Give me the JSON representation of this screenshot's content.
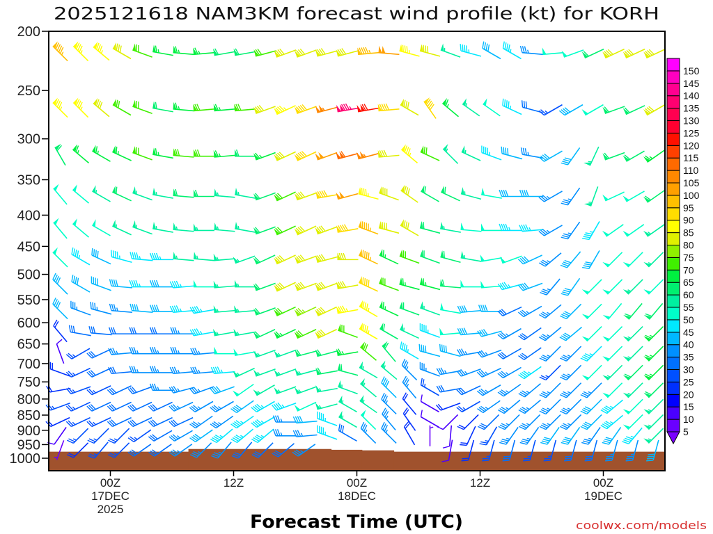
{
  "chart_data": {
    "type": "wind-barb-time-height",
    "title": "2025121618 NAM3KM forecast wind profile (kt) for KORH",
    "xlabel": "Forecast Time (UTC)",
    "ylabel": "",
    "credit": "coolwx.com/models",
    "x_range_hours": [
      0,
      60
    ],
    "y_range_mb": [
      200,
      1000
    ],
    "y_scale": "log",
    "y_ticks": [
      "200",
      "250",
      "300",
      "350",
      "400",
      "450",
      "500",
      "550",
      "600",
      "650",
      "700",
      "750",
      "800",
      "850",
      "900",
      "950",
      "1000"
    ],
    "x_ticks": [
      {
        "hour": 6,
        "label": "00Z",
        "date": "17DEC",
        "year": "2025"
      },
      {
        "hour": 18,
        "label": "12Z",
        "date": "",
        "year": ""
      },
      {
        "hour": 30,
        "label": "00Z",
        "date": "18DEC",
        "year": ""
      },
      {
        "hour": 42,
        "label": "12Z",
        "date": "",
        "year": ""
      },
      {
        "hour": 54,
        "label": "00Z",
        "date": "19DEC",
        "year": ""
      }
    ],
    "units": "kt",
    "hours": [
      2,
      4,
      6,
      8,
      10,
      12,
      14,
      16,
      18,
      20,
      22,
      24,
      26,
      28,
      30,
      32,
      34,
      36,
      38,
      40,
      42,
      44,
      46,
      48,
      50,
      52,
      54,
      56,
      58,
      60
    ],
    "levels": [
      {
        "p": 200,
        "spd": [
          95,
          85,
          85,
          80,
          70,
          65,
          65,
          65,
          60,
          60,
          70,
          80,
          80,
          80,
          80,
          95,
          100,
          85,
          80,
          55,
          45,
          40,
          45,
          35,
          50,
          50,
          60,
          80,
          80,
          80
        ],
        "dir": [
          315,
          315,
          310,
          300,
          290,
          280,
          275,
          265,
          260,
          260,
          255,
          250,
          250,
          255,
          255,
          265,
          275,
          285,
          285,
          290,
          285,
          300,
          300,
          275,
          265,
          250,
          245,
          245,
          245,
          245
        ]
      },
      {
        "p": 250,
        "spd": [
          85,
          85,
          80,
          70,
          70,
          60,
          65,
          70,
          65,
          70,
          80,
          85,
          90,
          105,
          135,
          120,
          90,
          80,
          90,
          65,
          55,
          50,
          45,
          30,
          25,
          40,
          50,
          60,
          60,
          80
        ],
        "dir": [
          315,
          315,
          310,
          300,
          290,
          280,
          275,
          265,
          265,
          265,
          250,
          245,
          250,
          255,
          260,
          260,
          265,
          300,
          325,
          310,
          305,
          305,
          295,
          285,
          240,
          240,
          240,
          250,
          245,
          240
        ]
      },
      {
        "p": 300,
        "spd": [
          60,
          65,
          65,
          65,
          70,
          65,
          70,
          70,
          65,
          60,
          65,
          80,
          90,
          100,
          110,
          105,
          80,
          85,
          70,
          55,
          55,
          45,
          40,
          35,
          40,
          40,
          55,
          60,
          60,
          65
        ],
        "dir": [
          330,
          310,
          300,
          295,
          290,
          280,
          275,
          270,
          265,
          270,
          250,
          245,
          245,
          250,
          255,
          255,
          265,
          310,
          295,
          315,
          295,
          290,
          285,
          280,
          240,
          215,
          205,
          250,
          240,
          235
        ]
      },
      {
        "p": 350,
        "spd": [
          50,
          50,
          55,
          60,
          55,
          55,
          60,
          60,
          55,
          55,
          60,
          70,
          80,
          90,
          100,
          85,
          80,
          80,
          60,
          60,
          55,
          50,
          40,
          40,
          35,
          35,
          55,
          50,
          50,
          60
        ],
        "dir": [
          320,
          310,
          300,
          295,
          290,
          280,
          275,
          270,
          275,
          280,
          250,
          245,
          250,
          260,
          255,
          285,
          290,
          305,
          300,
          295,
          285,
          280,
          270,
          270,
          240,
          215,
          200,
          245,
          240,
          235
        ]
      },
      {
        "p": 400,
        "spd": [
          50,
          50,
          50,
          55,
          55,
          55,
          55,
          55,
          55,
          55,
          60,
          70,
          80,
          80,
          90,
          95,
          80,
          80,
          60,
          55,
          50,
          50,
          45,
          45,
          35,
          35,
          45,
          50,
          50,
          55
        ],
        "dir": [
          320,
          310,
          300,
          295,
          290,
          280,
          275,
          270,
          275,
          280,
          250,
          245,
          245,
          250,
          260,
          290,
          285,
          300,
          285,
          280,
          275,
          270,
          270,
          265,
          240,
          215,
          210,
          235,
          235,
          235
        ]
      },
      {
        "p": 450,
        "spd": [
          50,
          45,
          40,
          45,
          45,
          45,
          55,
          55,
          55,
          55,
          60,
          80,
          80,
          80,
          80,
          95,
          65,
          70,
          60,
          60,
          55,
          50,
          50,
          40,
          35,
          40,
          40,
          50,
          50,
          55
        ],
        "dir": [
          315,
          300,
          295,
          285,
          275,
          270,
          275,
          275,
          265,
          250,
          245,
          245,
          250,
          255,
          270,
          295,
          295,
          290,
          290,
          285,
          280,
          260,
          250,
          245,
          230,
          220,
          210,
          225,
          225,
          225
        ]
      },
      {
        "p": 500,
        "spd": [
          40,
          40,
          40,
          40,
          45,
          40,
          45,
          50,
          55,
          55,
          60,
          80,
          80,
          80,
          80,
          90,
          70,
          65,
          65,
          60,
          50,
          50,
          45,
          40,
          35,
          40,
          50,
          50,
          55,
          50
        ],
        "dir": [
          315,
          300,
          290,
          275,
          270,
          270,
          265,
          270,
          265,
          270,
          250,
          245,
          250,
          250,
          260,
          295,
          290,
          285,
          285,
          275,
          270,
          265,
          255,
          250,
          220,
          215,
          225,
          225,
          225,
          225
        ]
      },
      {
        "p": 550,
        "spd": [
          40,
          35,
          35,
          35,
          40,
          40,
          45,
          45,
          55,
          55,
          60,
          70,
          75,
          80,
          85,
          85,
          65,
          60,
          55,
          50,
          40,
          40,
          30,
          35,
          35,
          40,
          50,
          50,
          60,
          60
        ],
        "dir": [
          315,
          290,
          285,
          275,
          275,
          270,
          265,
          260,
          265,
          265,
          250,
          245,
          245,
          245,
          260,
          300,
          295,
          290,
          290,
          280,
          265,
          270,
          245,
          240,
          230,
          225,
          225,
          220,
          220,
          220
        ]
      },
      {
        "p": 600,
        "spd": [
          20,
          30,
          30,
          30,
          30,
          30,
          35,
          45,
          55,
          55,
          60,
          65,
          70,
          80,
          70,
          85,
          60,
          55,
          45,
          50,
          40,
          40,
          35,
          30,
          35,
          40,
          50,
          50,
          55,
          65
        ],
        "dir": [
          320,
          280,
          275,
          270,
          270,
          270,
          270,
          260,
          260,
          260,
          245,
          245,
          245,
          245,
          290,
          300,
          300,
          295,
          290,
          265,
          265,
          255,
          240,
          235,
          230,
          230,
          225,
          225,
          225,
          225
        ]
      },
      {
        "p": 650,
        "spd": [
          10,
          25,
          30,
          35,
          35,
          35,
          35,
          35,
          50,
          50,
          55,
          55,
          60,
          60,
          65,
          70,
          60,
          45,
          40,
          40,
          35,
          35,
          30,
          30,
          35,
          35,
          45,
          50,
          55,
          65
        ],
        "dir": [
          340,
          240,
          245,
          265,
          270,
          270,
          270,
          265,
          270,
          260,
          250,
          250,
          255,
          255,
          260,
          310,
          320,
          300,
          285,
          285,
          260,
          250,
          240,
          235,
          225,
          225,
          225,
          225,
          225,
          225
        ]
      },
      {
        "p": 700,
        "spd": [
          20,
          25,
          30,
          30,
          35,
          35,
          35,
          35,
          45,
          55,
          55,
          55,
          55,
          60,
          60,
          55,
          55,
          35,
          35,
          35,
          35,
          35,
          35,
          45,
          25,
          35,
          50,
          55,
          60,
          65
        ],
        "dir": [
          290,
          245,
          245,
          265,
          270,
          270,
          265,
          265,
          265,
          245,
          250,
          250,
          255,
          260,
          285,
          300,
          310,
          315,
          290,
          260,
          250,
          245,
          240,
          235,
          225,
          225,
          225,
          225,
          225,
          225
        ]
      },
      {
        "p": 750,
        "spd": [
          20,
          25,
          25,
          30,
          30,
          35,
          35,
          35,
          40,
          50,
          55,
          55,
          55,
          55,
          55,
          55,
          40,
          35,
          25,
          30,
          30,
          35,
          35,
          35,
          35,
          35,
          35,
          50,
          55,
          60
        ],
        "dir": [
          260,
          250,
          245,
          245,
          250,
          270,
          255,
          250,
          250,
          235,
          240,
          250,
          250,
          260,
          290,
          310,
          315,
          320,
          300,
          260,
          245,
          240,
          235,
          230,
          225,
          225,
          225,
          225,
          225,
          225
        ]
      },
      {
        "p": 800,
        "spd": [
          25,
          25,
          30,
          30,
          30,
          30,
          35,
          35,
          35,
          40,
          45,
          45,
          50,
          55,
          55,
          55,
          35,
          20,
          10,
          20,
          25,
          35,
          35,
          35,
          35,
          35,
          40,
          45,
          50,
          55
        ],
        "dir": [
          250,
          245,
          245,
          245,
          245,
          245,
          245,
          240,
          240,
          235,
          240,
          250,
          245,
          255,
          300,
          305,
          315,
          320,
          300,
          250,
          240,
          235,
          230,
          230,
          225,
          225,
          225,
          230,
          225,
          225
        ]
      },
      {
        "p": 850,
        "spd": [
          20,
          25,
          25,
          30,
          30,
          30,
          30,
          35,
          35,
          45,
          45,
          35,
          40,
          45,
          55,
          50,
          35,
          20,
          10,
          10,
          20,
          30,
          35,
          35,
          35,
          35,
          40,
          45,
          50,
          55
        ],
        "dir": [
          245,
          245,
          245,
          245,
          245,
          245,
          245,
          235,
          235,
          235,
          240,
          270,
          265,
          290,
          300,
          315,
          320,
          325,
          300,
          225,
          225,
          225,
          225,
          225,
          225,
          225,
          225,
          230,
          225,
          225
        ]
      },
      {
        "p": 900,
        "spd": [
          10,
          25,
          25,
          25,
          25,
          30,
          35,
          40,
          45,
          45,
          45,
          35,
          35,
          45,
          30,
          35,
          35,
          20,
          5,
          10,
          20,
          25,
          35,
          35,
          40,
          40,
          35,
          40,
          45,
          55
        ],
        "dir": [
          215,
          225,
          225,
          225,
          235,
          240,
          240,
          235,
          230,
          230,
          230,
          270,
          265,
          290,
          300,
          315,
          315,
          330,
          360,
          185,
          205,
          210,
          215,
          215,
          215,
          215,
          215,
          215,
          220,
          225
        ]
      },
      {
        "p": 950,
        "spd": [
          5,
          20,
          25,
          25,
          30,
          30,
          35,
          35,
          35,
          30,
          30,
          30,
          35,
          null,
          null,
          null,
          null,
          null,
          null,
          10,
          20,
          25,
          30,
          25,
          25,
          30,
          30,
          35,
          35,
          40
        ],
        "dir": [
          200,
          225,
          220,
          225,
          235,
          235,
          235,
          225,
          220,
          220,
          225,
          230,
          235,
          null,
          null,
          null,
          null,
          null,
          null,
          190,
          195,
          195,
          195,
          195,
          195,
          195,
          195,
          195,
          195,
          195
        ]
      }
    ],
    "surface_pressure_mb": [
      {
        "from_hour": 0,
        "to_hour": 13.6,
        "p": 986
      },
      {
        "from_hour": 13.6,
        "to_hour": 27.5,
        "p": 976
      },
      {
        "from_hour": 27.5,
        "to_hour": 30.5,
        "p": 979
      },
      {
        "from_hour": 30.5,
        "to_hour": 33.6,
        "p": 981
      },
      {
        "from_hour": 33.6,
        "to_hour": 60,
        "p": 986
      }
    ],
    "colorbar": {
      "labels": [
        "5",
        "10",
        "15",
        "20",
        "25",
        "30",
        "35",
        "40",
        "45",
        "50",
        "55",
        "60",
        "65",
        "70",
        "75",
        "80",
        "85",
        "90",
        "95",
        "100",
        "105",
        "110",
        "115",
        "120",
        "125",
        "130",
        "135",
        "140",
        "145",
        "150"
      ],
      "below_color": "#7a00ff",
      "above_color": "#000000",
      "bin_colors": [
        "#6a00ff",
        "#4a00ff",
        "#0000ff",
        "#0030ff",
        "#0050ff",
        "#0070ff",
        "#0090ff",
        "#00b8ff",
        "#00e8ff",
        "#00ffc8",
        "#00f0a0",
        "#00f070",
        "#00f040",
        "#40f000",
        "#90f000",
        "#e0f000",
        "#ffff00",
        "#ffdd00",
        "#ffc000",
        "#ffa000",
        "#ff8800",
        "#ff6a00",
        "#ff4000",
        "#ff1000",
        "#ff0030",
        "#ff0050",
        "#ff0070",
        "#ff0090",
        "#ff00c0",
        "#ff00ff"
      ]
    },
    "ground_color": "#a0522d"
  }
}
